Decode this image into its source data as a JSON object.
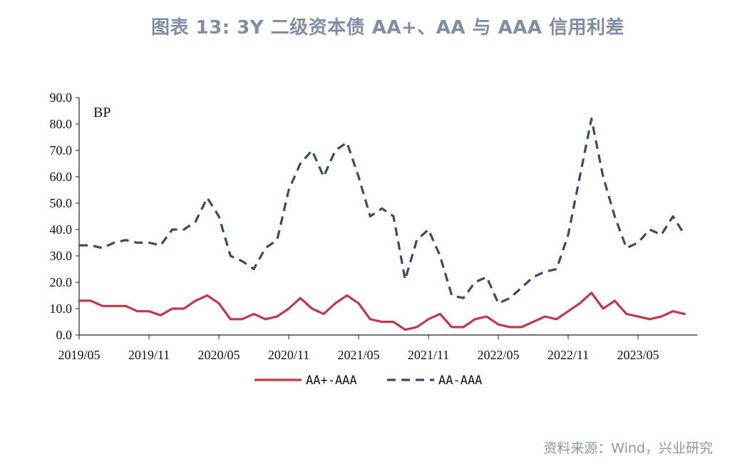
{
  "title": "图表 13: 3Y 二级资本债 AA+、AA 与 AAA 信用利差",
  "source": "资料来源：Wind，兴业研究",
  "colors": {
    "series1": "#c0384b",
    "series2": "#3b4a68",
    "axis": "#222222"
  },
  "chart_data": {
    "type": "line",
    "unit_label": "BP",
    "ylim": [
      0,
      90
    ],
    "y_ticks": [
      "0.0",
      "10.0",
      "20.0",
      "30.0",
      "40.0",
      "50.0",
      "60.0",
      "70.0",
      "80.0",
      "90.0"
    ],
    "x_ticks": [
      "2019/05",
      "2019/11",
      "2020/05",
      "2020/11",
      "2021/05",
      "2021/11",
      "2022/05",
      "2022/11",
      "2023/05"
    ],
    "x_range": [
      "2019/05",
      "2023/09"
    ],
    "grid": false,
    "legend_position": "bottom",
    "series": [
      {
        "name": "AA+-AAA",
        "style": "solid",
        "points": [
          [
            "2019/05",
            13
          ],
          [
            "2019/06",
            13
          ],
          [
            "2019/07",
            11
          ],
          [
            "2019/08",
            11
          ],
          [
            "2019/09",
            11
          ],
          [
            "2019/10",
            9
          ],
          [
            "2019/11",
            9
          ],
          [
            "2019/12",
            7.5
          ],
          [
            "2020/01",
            10
          ],
          [
            "2020/02",
            10
          ],
          [
            "2020/03",
            13
          ],
          [
            "2020/04",
            15
          ],
          [
            "2020/05",
            12
          ],
          [
            "2020/06",
            6
          ],
          [
            "2020/07",
            6
          ],
          [
            "2020/08",
            8
          ],
          [
            "2020/09",
            6
          ],
          [
            "2020/10",
            7
          ],
          [
            "2020/11",
            10
          ],
          [
            "2020/12",
            14
          ],
          [
            "2021/01",
            10
          ],
          [
            "2021/02",
            8
          ],
          [
            "2021/03",
            12
          ],
          [
            "2021/04",
            15
          ],
          [
            "2021/05",
            12
          ],
          [
            "2021/06",
            6
          ],
          [
            "2021/07",
            5
          ],
          [
            "2021/08",
            5
          ],
          [
            "2021/09",
            2
          ],
          [
            "2021/10",
            3
          ],
          [
            "2021/11",
            6
          ],
          [
            "2021/12",
            8
          ],
          [
            "2022/01",
            3
          ],
          [
            "2022/02",
            3
          ],
          [
            "2022/03",
            6
          ],
          [
            "2022/04",
            7
          ],
          [
            "2022/05",
            4
          ],
          [
            "2022/06",
            3
          ],
          [
            "2022/07",
            3
          ],
          [
            "2022/08",
            5
          ],
          [
            "2022/09",
            7
          ],
          [
            "2022/10",
            6
          ],
          [
            "2022/11",
            9
          ],
          [
            "2022/12",
            12
          ],
          [
            "2023/01",
            16
          ],
          [
            "2023/02",
            10
          ],
          [
            "2023/03",
            13
          ],
          [
            "2023/04",
            8
          ],
          [
            "2023/05",
            7
          ],
          [
            "2023/06",
            6
          ],
          [
            "2023/07",
            7
          ],
          [
            "2023/08",
            9
          ],
          [
            "2023/09",
            8
          ]
        ]
      },
      {
        "name": "AA-AAA",
        "style": "dashed",
        "points": [
          [
            "2019/05",
            34
          ],
          [
            "2019/06",
            34
          ],
          [
            "2019/07",
            33
          ],
          [
            "2019/08",
            35
          ],
          [
            "2019/09",
            36
          ],
          [
            "2019/10",
            35
          ],
          [
            "2019/11",
            35
          ],
          [
            "2019/12",
            34
          ],
          [
            "2020/01",
            40
          ],
          [
            "2020/02",
            40
          ],
          [
            "2020/03",
            43
          ],
          [
            "2020/04",
            52
          ],
          [
            "2020/05",
            45
          ],
          [
            "2020/06",
            30
          ],
          [
            "2020/07",
            28
          ],
          [
            "2020/08",
            25
          ],
          [
            "2020/09",
            33
          ],
          [
            "2020/10",
            36
          ],
          [
            "2020/11",
            55
          ],
          [
            "2020/12",
            65
          ],
          [
            "2021/01",
            70
          ],
          [
            "2021/02",
            60
          ],
          [
            "2021/03",
            70
          ],
          [
            "2021/04",
            73
          ],
          [
            "2021/05",
            60
          ],
          [
            "2021/06",
            45
          ],
          [
            "2021/07",
            48
          ],
          [
            "2021/08",
            45
          ],
          [
            "2021/09",
            21
          ],
          [
            "2021/10",
            36
          ],
          [
            "2021/11",
            40
          ],
          [
            "2021/12",
            30
          ],
          [
            "2022/01",
            15
          ],
          [
            "2022/02",
            14
          ],
          [
            "2022/03",
            20
          ],
          [
            "2022/04",
            22
          ],
          [
            "2022/05",
            12
          ],
          [
            "2022/06",
            14
          ],
          [
            "2022/07",
            18
          ],
          [
            "2022/08",
            22
          ],
          [
            "2022/09",
            24
          ],
          [
            "2022/10",
            25
          ],
          [
            "2022/11",
            38
          ],
          [
            "2022/12",
            60
          ],
          [
            "2023/01",
            82
          ],
          [
            "2023/02",
            60
          ],
          [
            "2023/03",
            45
          ],
          [
            "2023/04",
            33
          ],
          [
            "2023/05",
            35
          ],
          [
            "2023/06",
            40
          ],
          [
            "2023/07",
            38
          ],
          [
            "2023/08",
            45
          ],
          [
            "2023/09",
            38
          ]
        ]
      }
    ]
  }
}
